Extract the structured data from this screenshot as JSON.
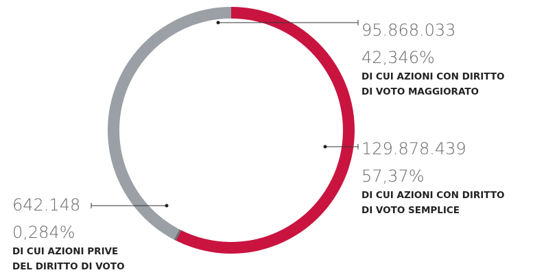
{
  "chart_data": {
    "type": "pie",
    "categories": [
      [
        "DI CUI AZIONI CON DIRITTO",
        "DI VOTO SEMPLICE"
      ],
      [
        "DI CUI AZIONI PRIVE",
        "DEL DIRITTO DI VOTO"
      ],
      [
        "DI CUI AZIONI CON DIRITTO",
        "DI VOTO MAGGIORATO"
      ]
    ],
    "values": [
      57.37,
      0.284,
      42.346
    ],
    "value_labels": [
      "57,37%",
      "0,284%",
      "42,346%"
    ],
    "shares": [
      {
        "value": 129878439,
        "label": "129.878.439"
      },
      {
        "value": 642148,
        "label": "642.148"
      },
      {
        "value": 95868033,
        "label": "95.868.033"
      }
    ],
    "colors": [
      "#c9143f",
      "#6b6d70",
      "#9b9fa6"
    ]
  }
}
